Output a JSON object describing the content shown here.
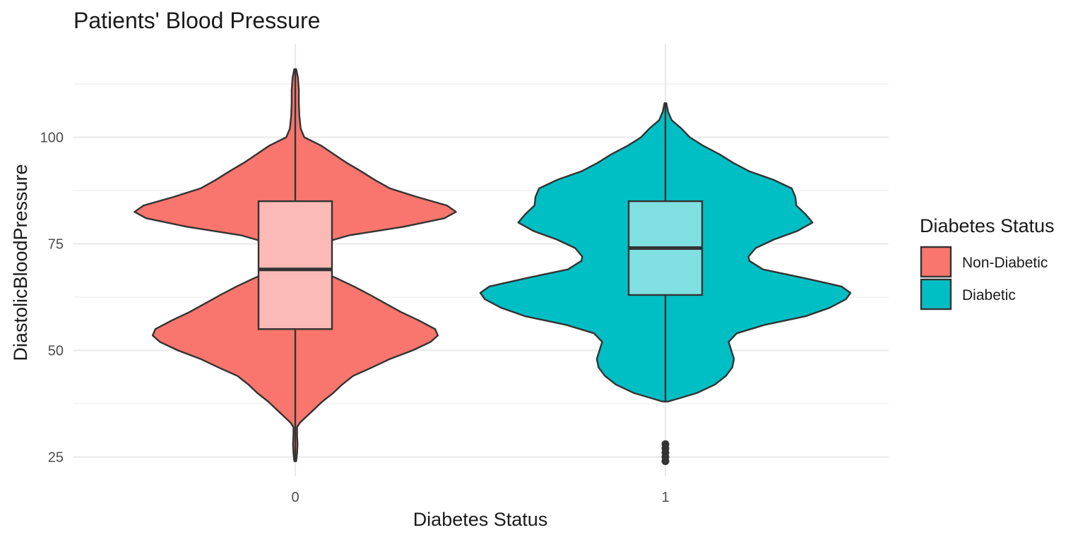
{
  "chart_data": {
    "type": "violin",
    "title": "Patients' Blood Pressure",
    "xlabel": "Diabetes Status",
    "ylabel": "DiastolicBloodPressure",
    "ylim": [
      20,
      117
    ],
    "yticks": [
      25,
      50,
      75,
      100
    ],
    "categories": [
      "0",
      "1"
    ],
    "legend": {
      "title": "Diabetes Status",
      "position": "right",
      "entries": [
        {
          "label": "Non-Diabetic",
          "color": "#F8766D"
        },
        {
          "label": "Diabetic",
          "color": "#00BFC4"
        }
      ]
    },
    "grid": true,
    "series": [
      {
        "category": "0",
        "color": "#F8766D",
        "box_color": "#FCBAB6",
        "box": {
          "lower_whisker": 24,
          "q1": 55,
          "median": 69,
          "q3": 85,
          "upper_whisker": 116
        },
        "outliers": [],
        "density": [
          [
            24,
            0.01
          ],
          [
            26,
            0.02
          ],
          [
            28,
            0.025
          ],
          [
            30,
            0.02
          ],
          [
            32,
            0.02
          ],
          [
            33,
            0.05
          ],
          [
            34,
            0.1
          ],
          [
            36,
            0.2
          ],
          [
            38,
            0.3
          ],
          [
            40,
            0.42
          ],
          [
            42,
            0.52
          ],
          [
            44,
            0.64
          ],
          [
            46,
            0.85
          ],
          [
            48,
            1.05
          ],
          [
            50,
            1.3
          ],
          [
            52,
            1.5
          ],
          [
            53.5,
            1.58
          ],
          [
            55,
            1.55
          ],
          [
            57,
            1.37
          ],
          [
            59,
            1.17
          ],
          [
            61,
            1.0
          ],
          [
            63,
            0.83
          ],
          [
            65,
            0.65
          ],
          [
            67,
            0.45
          ],
          [
            69,
            0.23
          ],
          [
            71,
            0.11
          ],
          [
            72,
            0.09
          ],
          [
            73,
            0.11
          ],
          [
            75,
            0.27
          ],
          [
            77,
            0.6
          ],
          [
            79,
            1.2
          ],
          [
            81,
            1.65
          ],
          [
            82.5,
            1.78
          ],
          [
            84,
            1.68
          ],
          [
            86,
            1.35
          ],
          [
            88,
            1.05
          ],
          [
            90,
            0.88
          ],
          [
            92,
            0.73
          ],
          [
            94,
            0.57
          ],
          [
            96,
            0.43
          ],
          [
            98,
            0.29
          ],
          [
            100,
            0.1
          ],
          [
            102,
            0.06
          ],
          [
            105,
            0.045
          ],
          [
            108,
            0.04
          ],
          [
            111,
            0.04
          ],
          [
            114,
            0.03
          ],
          [
            116,
            0.01
          ]
        ]
      },
      {
        "category": "1",
        "color": "#00BFC4",
        "box_color": "#80DFE1",
        "box": {
          "lower_whisker": 38,
          "q1": 63,
          "median": 74,
          "q3": 85,
          "upper_whisker": 108
        },
        "outliers": [
          24,
          25,
          26,
          27,
          28
        ],
        "density": [
          [
            38,
            0.03
          ],
          [
            40,
            0.35
          ],
          [
            42,
            0.55
          ],
          [
            44,
            0.67
          ],
          [
            46,
            0.74
          ],
          [
            48,
            0.76
          ],
          [
            50,
            0.73
          ],
          [
            52,
            0.7
          ],
          [
            54,
            0.79
          ],
          [
            56,
            1.1
          ],
          [
            58,
            1.55
          ],
          [
            60,
            1.82
          ],
          [
            62,
            2.0
          ],
          [
            63.5,
            2.05
          ],
          [
            65,
            1.95
          ],
          [
            67,
            1.53
          ],
          [
            69,
            1.08
          ],
          [
            71,
            0.93
          ],
          [
            72,
            0.92
          ],
          [
            74,
            1.0
          ],
          [
            76,
            1.2
          ],
          [
            78,
            1.46
          ],
          [
            80,
            1.63
          ],
          [
            82,
            1.55
          ],
          [
            84,
            1.45
          ],
          [
            86,
            1.44
          ],
          [
            88,
            1.4
          ],
          [
            90,
            1.2
          ],
          [
            92,
            0.93
          ],
          [
            94,
            0.75
          ],
          [
            96,
            0.6
          ],
          [
            98,
            0.42
          ],
          [
            100,
            0.27
          ],
          [
            102,
            0.18
          ],
          [
            104,
            0.07
          ],
          [
            106,
            0.03
          ],
          [
            108,
            0.01
          ]
        ]
      }
    ]
  }
}
